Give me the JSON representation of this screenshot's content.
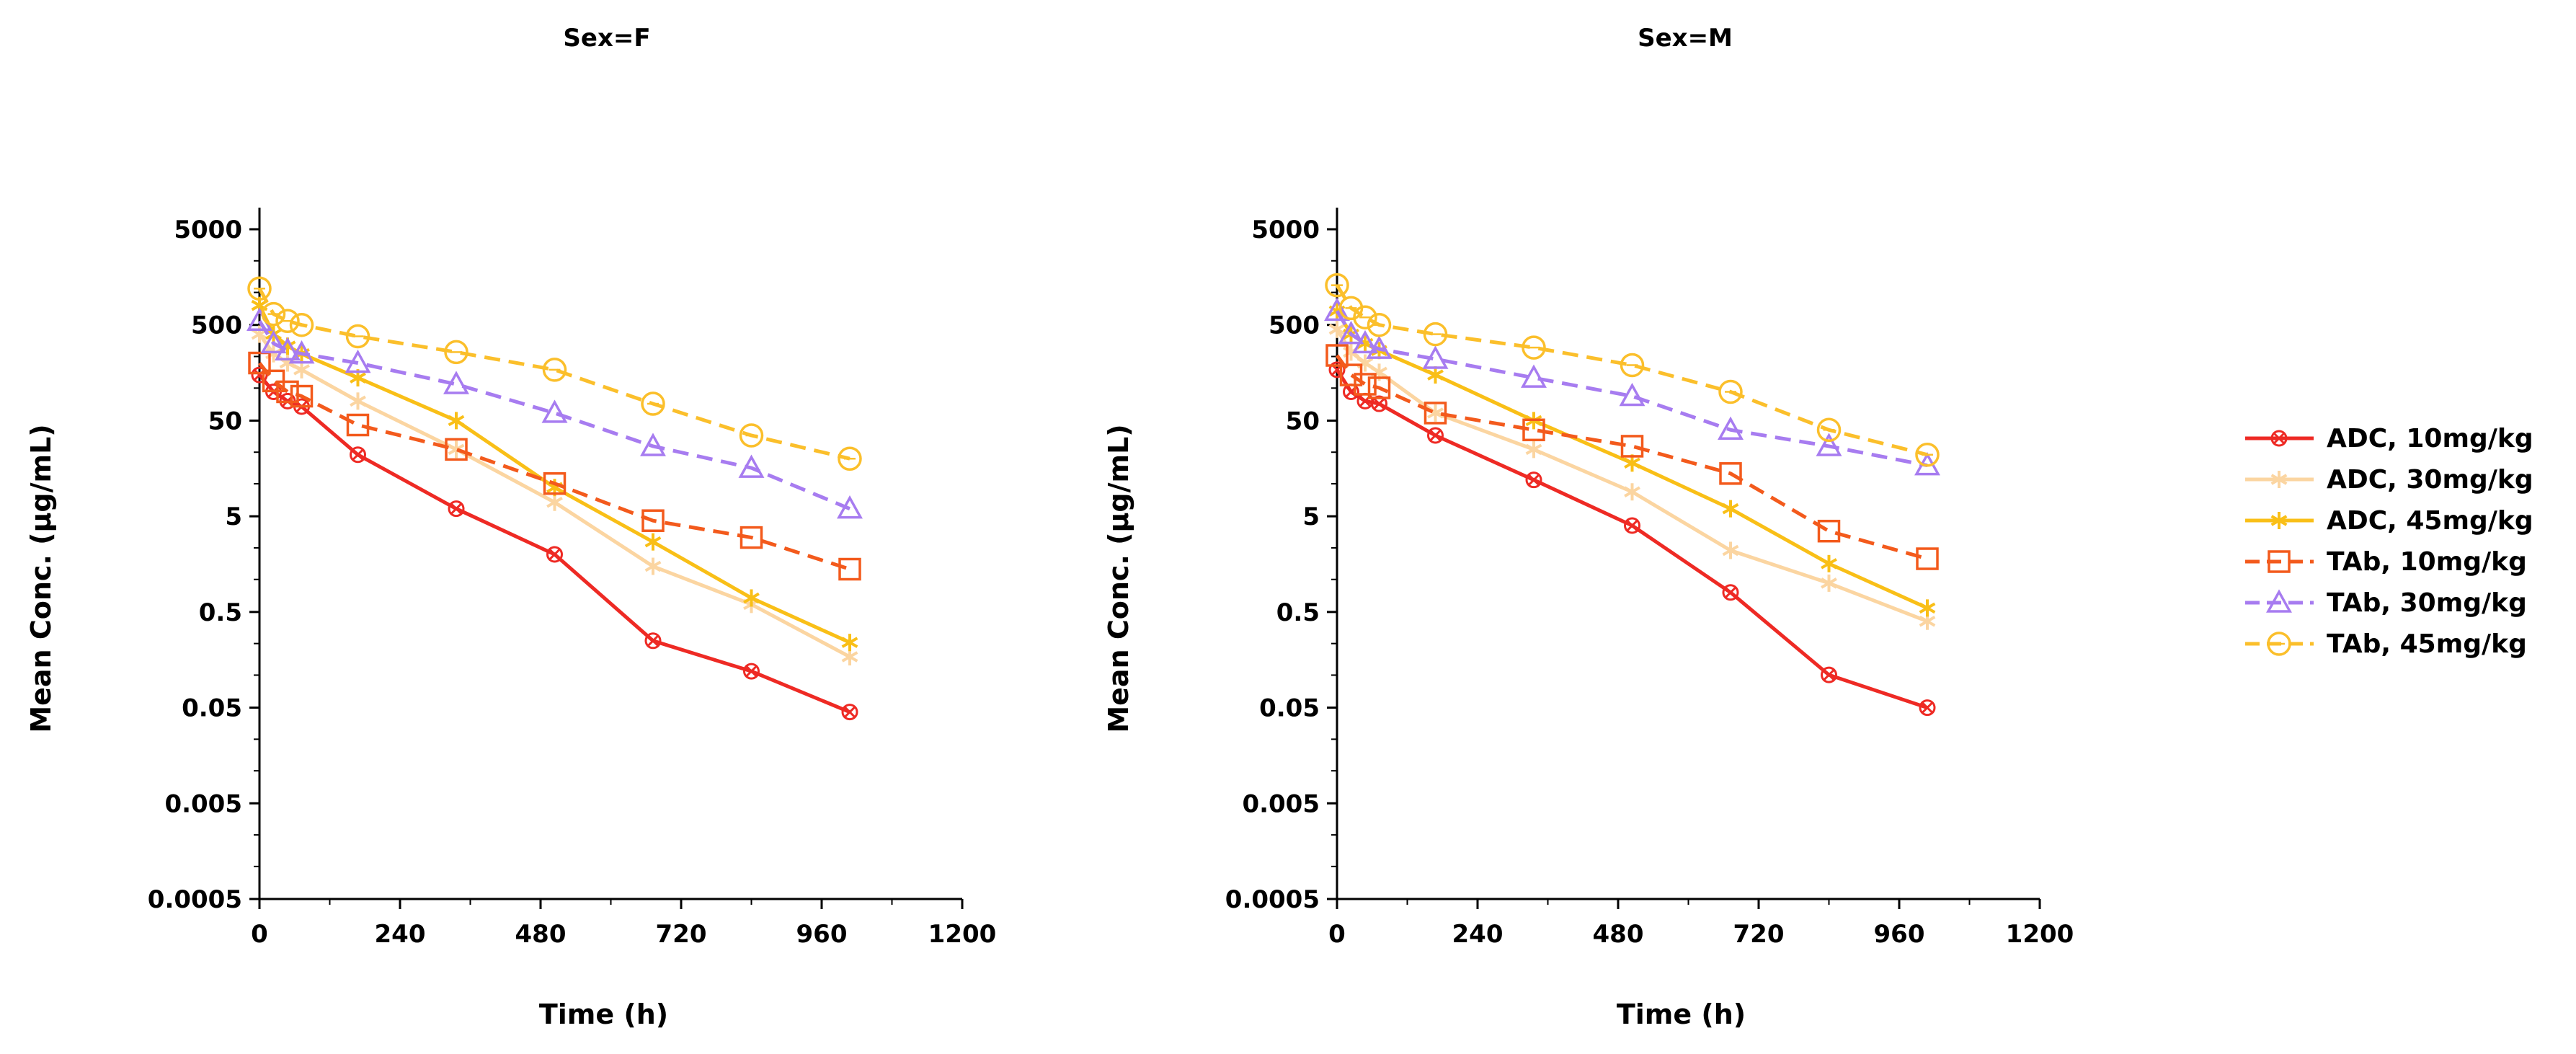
{
  "chart_data": {
    "type": "line",
    "x_label": "Time (h)",
    "y_label": "Mean Conc. (µg/mL)",
    "y_scale": "log",
    "xlim": [
      0,
      1200
    ],
    "ylim": [
      0.0005,
      5000
    ],
    "x_ticks": [
      "0",
      "240",
      "480",
      "720",
      "960",
      "1200"
    ],
    "y_ticks": [
      "5000",
      "500",
      "50",
      "5",
      "0.5",
      "0.05",
      "0.005",
      "0.0005"
    ],
    "legend_position": "right",
    "legend": [
      {
        "name": "ADC, 10mg/kg",
        "color": "#ee2a24",
        "dash": "solid",
        "marker": "x-circle"
      },
      {
        "name": "ADC, 30mg/kg",
        "color": "#fbd5a1",
        "dash": "solid",
        "marker": "star"
      },
      {
        "name": "ADC, 45mg/kg",
        "color": "#f9bf17",
        "dash": "solid",
        "marker": "star"
      },
      {
        "name": "TAb, 10mg/kg",
        "color": "#f35a1c",
        "dash": "dashed",
        "marker": "square"
      },
      {
        "name": "TAb, 30mg/kg",
        "color": "#a77cf0",
        "dash": "dashed",
        "marker": "triangle"
      },
      {
        "name": "TAb, 45mg/kg",
        "color": "#fbbf2b",
        "dash": "dashed",
        "marker": "circle"
      }
    ],
    "panels": [
      {
        "title": "Sex=F",
        "series": [
          {
            "name": "ADC, 10mg/kg",
            "x": [
              0,
              24,
              48,
              72,
              168,
              336,
              504,
              672,
              840,
              1008
            ],
            "y": [
              150,
              100,
              80,
              70,
              22,
              6,
              2,
              0.25,
              0.12,
              0.045
            ]
          },
          {
            "name": "ADC, 30mg/kg",
            "x": [
              0,
              24,
              48,
              72,
              168,
              336,
              504,
              672,
              840,
              1008
            ],
            "y": [
              400,
              250,
              200,
              170,
              80,
              25,
              7,
              1.5,
              0.6,
              0.17
            ]
          },
          {
            "name": "ADC, 45mg/kg",
            "x": [
              0,
              24,
              48,
              72,
              168,
              336,
              504,
              672,
              840,
              1008
            ],
            "y": [
              800,
              400,
              300,
              250,
              140,
              50,
              10,
              2.7,
              0.7,
              0.24
            ]
          },
          {
            "name": "TAb, 10mg/kg",
            "x": [
              0,
              24,
              48,
              72,
              168,
              336,
              504,
              672,
              840,
              1008
            ],
            "y": [
              200,
              130,
              100,
              90,
              45,
              25,
              11,
              4.5,
              3,
              1.4
            ]
          },
          {
            "name": "TAb, 30mg/kg",
            "x": [
              0,
              24,
              48,
              72,
              168,
              336,
              504,
              672,
              840,
              1008
            ],
            "y": [
              550,
              320,
              270,
              250,
              200,
              120,
              60,
              27,
              16,
              6
            ]
          },
          {
            "name": "TAb, 45mg/kg",
            "x": [
              0,
              24,
              48,
              72,
              168,
              336,
              504,
              672,
              840,
              1008
            ],
            "y": [
              1200,
              650,
              550,
              500,
              380,
              260,
              170,
              75,
              35,
              20
            ]
          }
        ]
      },
      {
        "title": "Sex=M",
        "series": [
          {
            "name": "ADC, 10mg/kg",
            "x": [
              0,
              24,
              48,
              72,
              168,
              336,
              504,
              672,
              840,
              1008
            ],
            "y": [
              170,
              100,
              80,
              75,
              35,
              12,
              4,
              0.8,
              0.11,
              0.05
            ]
          },
          {
            "name": "ADC, 30mg/kg",
            "x": [
              0,
              24,
              48,
              72,
              168,
              336,
              504,
              672,
              840,
              1008
            ],
            "y": [
              450,
              260,
              200,
              160,
              60,
              25,
              9,
              2.2,
              1,
              0.4
            ]
          },
          {
            "name": "ADC, 45mg/kg",
            "x": [
              0,
              24,
              48,
              72,
              168,
              336,
              504,
              672,
              840,
              1008
            ],
            "y": [
              700,
              400,
              320,
              270,
              150,
              50,
              18,
              6,
              1.6,
              0.55
            ]
          },
          {
            "name": "TAb, 10mg/kg",
            "x": [
              0,
              24,
              48,
              72,
              168,
              336,
              504,
              672,
              840,
              1008
            ],
            "y": [
              240,
              150,
              120,
              110,
              60,
              40,
              27,
              14,
              3.5,
              1.8
            ]
          },
          {
            "name": "TAb, 30mg/kg",
            "x": [
              0,
              24,
              48,
              72,
              168,
              336,
              504,
              672,
              840,
              1008
            ],
            "y": [
              700,
              400,
              320,
              280,
              220,
              140,
              90,
              40,
              27,
              17
            ]
          },
          {
            "name": "TAb, 45mg/kg",
            "x": [
              0,
              24,
              48,
              72,
              168,
              336,
              504,
              672,
              840,
              1008
            ],
            "y": [
              1300,
              750,
              600,
              500,
              400,
              290,
              190,
              100,
              40,
              22
            ]
          }
        ]
      }
    ]
  }
}
